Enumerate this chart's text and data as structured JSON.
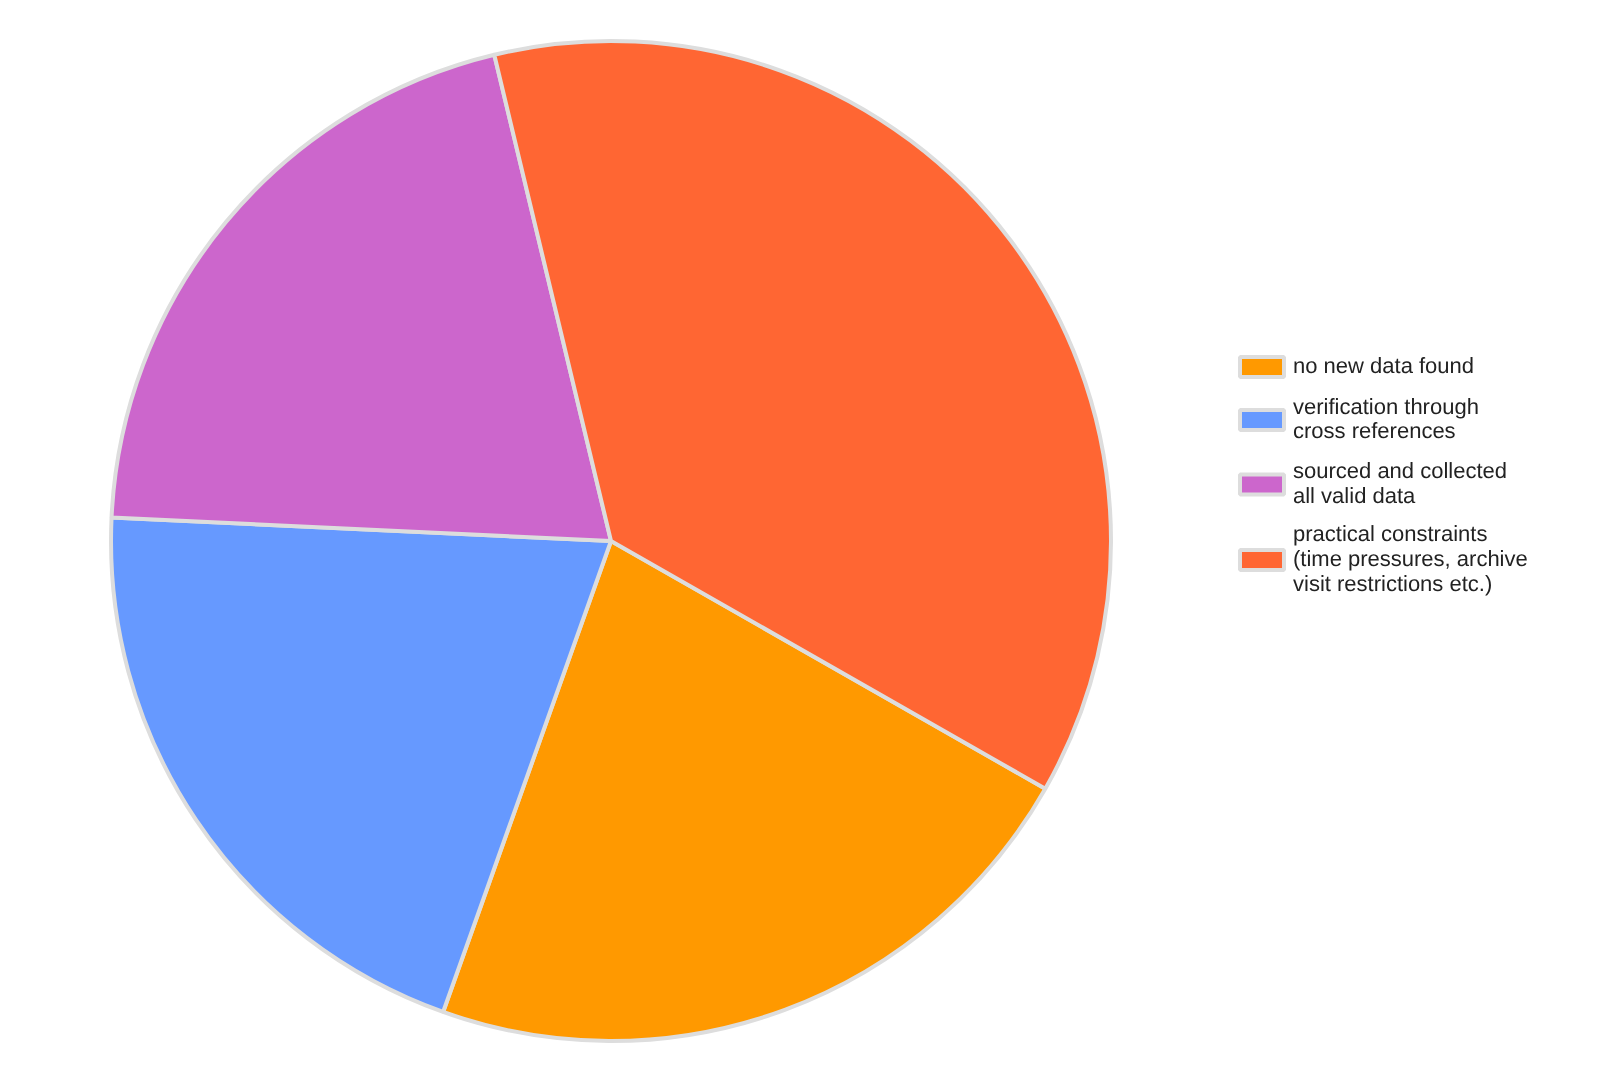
{
  "chart_data": {
    "type": "pie",
    "categories": [
      "no new data found",
      "verification through cross references",
      "sourced and collected all valid data",
      "practical constraints (time pressures, archive visit restrictions etc.)"
    ],
    "values": [
      22.2,
      20.3,
      20.5,
      37.0
    ],
    "colors": [
      "#ff9900",
      "#6699ff",
      "#cc66cc",
      "#ff6633"
    ],
    "legend": "right"
  }
}
